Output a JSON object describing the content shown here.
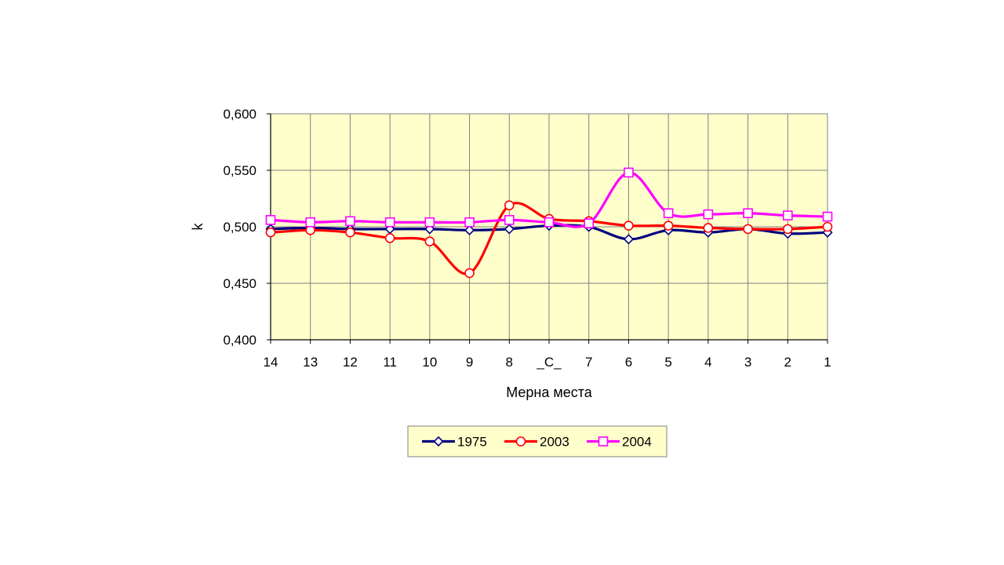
{
  "chart_data": {
    "type": "line",
    "title": "",
    "xlabel": "Мерна места",
    "ylabel": "k",
    "categories": [
      "14",
      "13",
      "12",
      "11",
      "10",
      "9",
      "8",
      "_C_",
      "7",
      "6",
      "5",
      "4",
      "3",
      "2",
      "1"
    ],
    "ylim": [
      0.4,
      0.6
    ],
    "yticks": [
      "0,400",
      "0,450",
      "0,500",
      "0,550",
      "0,600"
    ],
    "yticks_values": [
      0.4,
      0.45,
      0.5,
      0.55,
      0.6
    ],
    "grid": true,
    "legend_position": "bottom",
    "plot_background": "#FFFFCC",
    "series": [
      {
        "name": "1975",
        "color": "#000080",
        "marker": "diamond",
        "values": [
          0.498,
          0.499,
          0.498,
          0.498,
          0.498,
          0.497,
          0.498,
          0.501,
          0.5,
          0.489,
          0.497,
          0.495,
          0.498,
          0.494,
          0.495
        ]
      },
      {
        "name": "2003",
        "color": "#FF0000",
        "marker": "circle",
        "values": [
          0.495,
          0.497,
          0.495,
          0.49,
          0.487,
          0.459,
          0.519,
          0.507,
          0.505,
          0.501,
          0.501,
          0.499,
          0.498,
          0.498,
          0.5
        ]
      },
      {
        "name": "2004",
        "color": "#FF00FF",
        "marker": "square",
        "values": [
          0.506,
          0.504,
          0.505,
          0.504,
          0.504,
          0.504,
          0.506,
          0.504,
          0.503,
          0.548,
          0.512,
          0.511,
          0.512,
          0.51,
          0.509
        ]
      }
    ]
  }
}
